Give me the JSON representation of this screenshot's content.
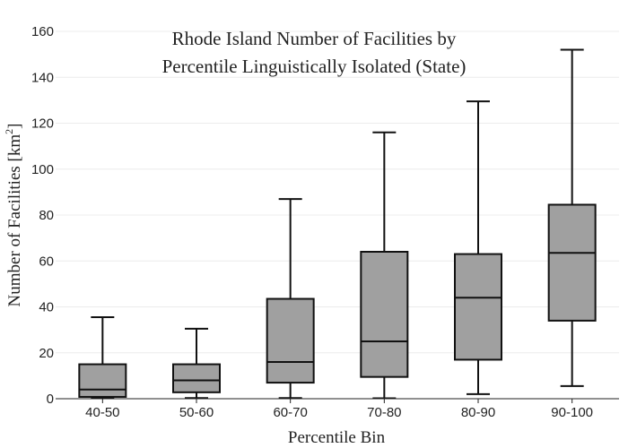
{
  "chart_data": {
    "type": "box",
    "title_lines": [
      "Rhode Island Number of Facilities by",
      "Percentile Linguistically Isolated (State)"
    ],
    "xlabel": "Percentile Bin",
    "ylabel_main": "Number of Facilities  [km",
    "ylabel_sup": "2",
    "ylabel_end": "]",
    "ylim": [
      0,
      160
    ],
    "yticks": [
      0,
      20,
      40,
      60,
      80,
      100,
      120,
      140,
      160
    ],
    "grid": true,
    "box_color": "#a0a0a0",
    "line_color": "#111111",
    "categories": [
      "40-50",
      "50-60",
      "60-70",
      "70-80",
      "80-90",
      "90-100"
    ],
    "boxes": [
      {
        "min": 0.5,
        "q1": 0.8,
        "median": 4,
        "q3": 15,
        "max": 35.5
      },
      {
        "min": 0.3,
        "q1": 2.8,
        "median": 8,
        "q3": 15,
        "max": 30.5
      },
      {
        "min": 0.3,
        "q1": 7,
        "median": 16,
        "q3": 43.5,
        "max": 87
      },
      {
        "min": 0.2,
        "q1": 9.5,
        "median": 25,
        "q3": 64,
        "max": 116
      },
      {
        "min": 2,
        "q1": 17,
        "median": 44,
        "q3": 63,
        "max": 129.5
      },
      {
        "min": 5.5,
        "q1": 34,
        "median": 63.5,
        "q3": 84.5,
        "max": 152
      }
    ]
  }
}
